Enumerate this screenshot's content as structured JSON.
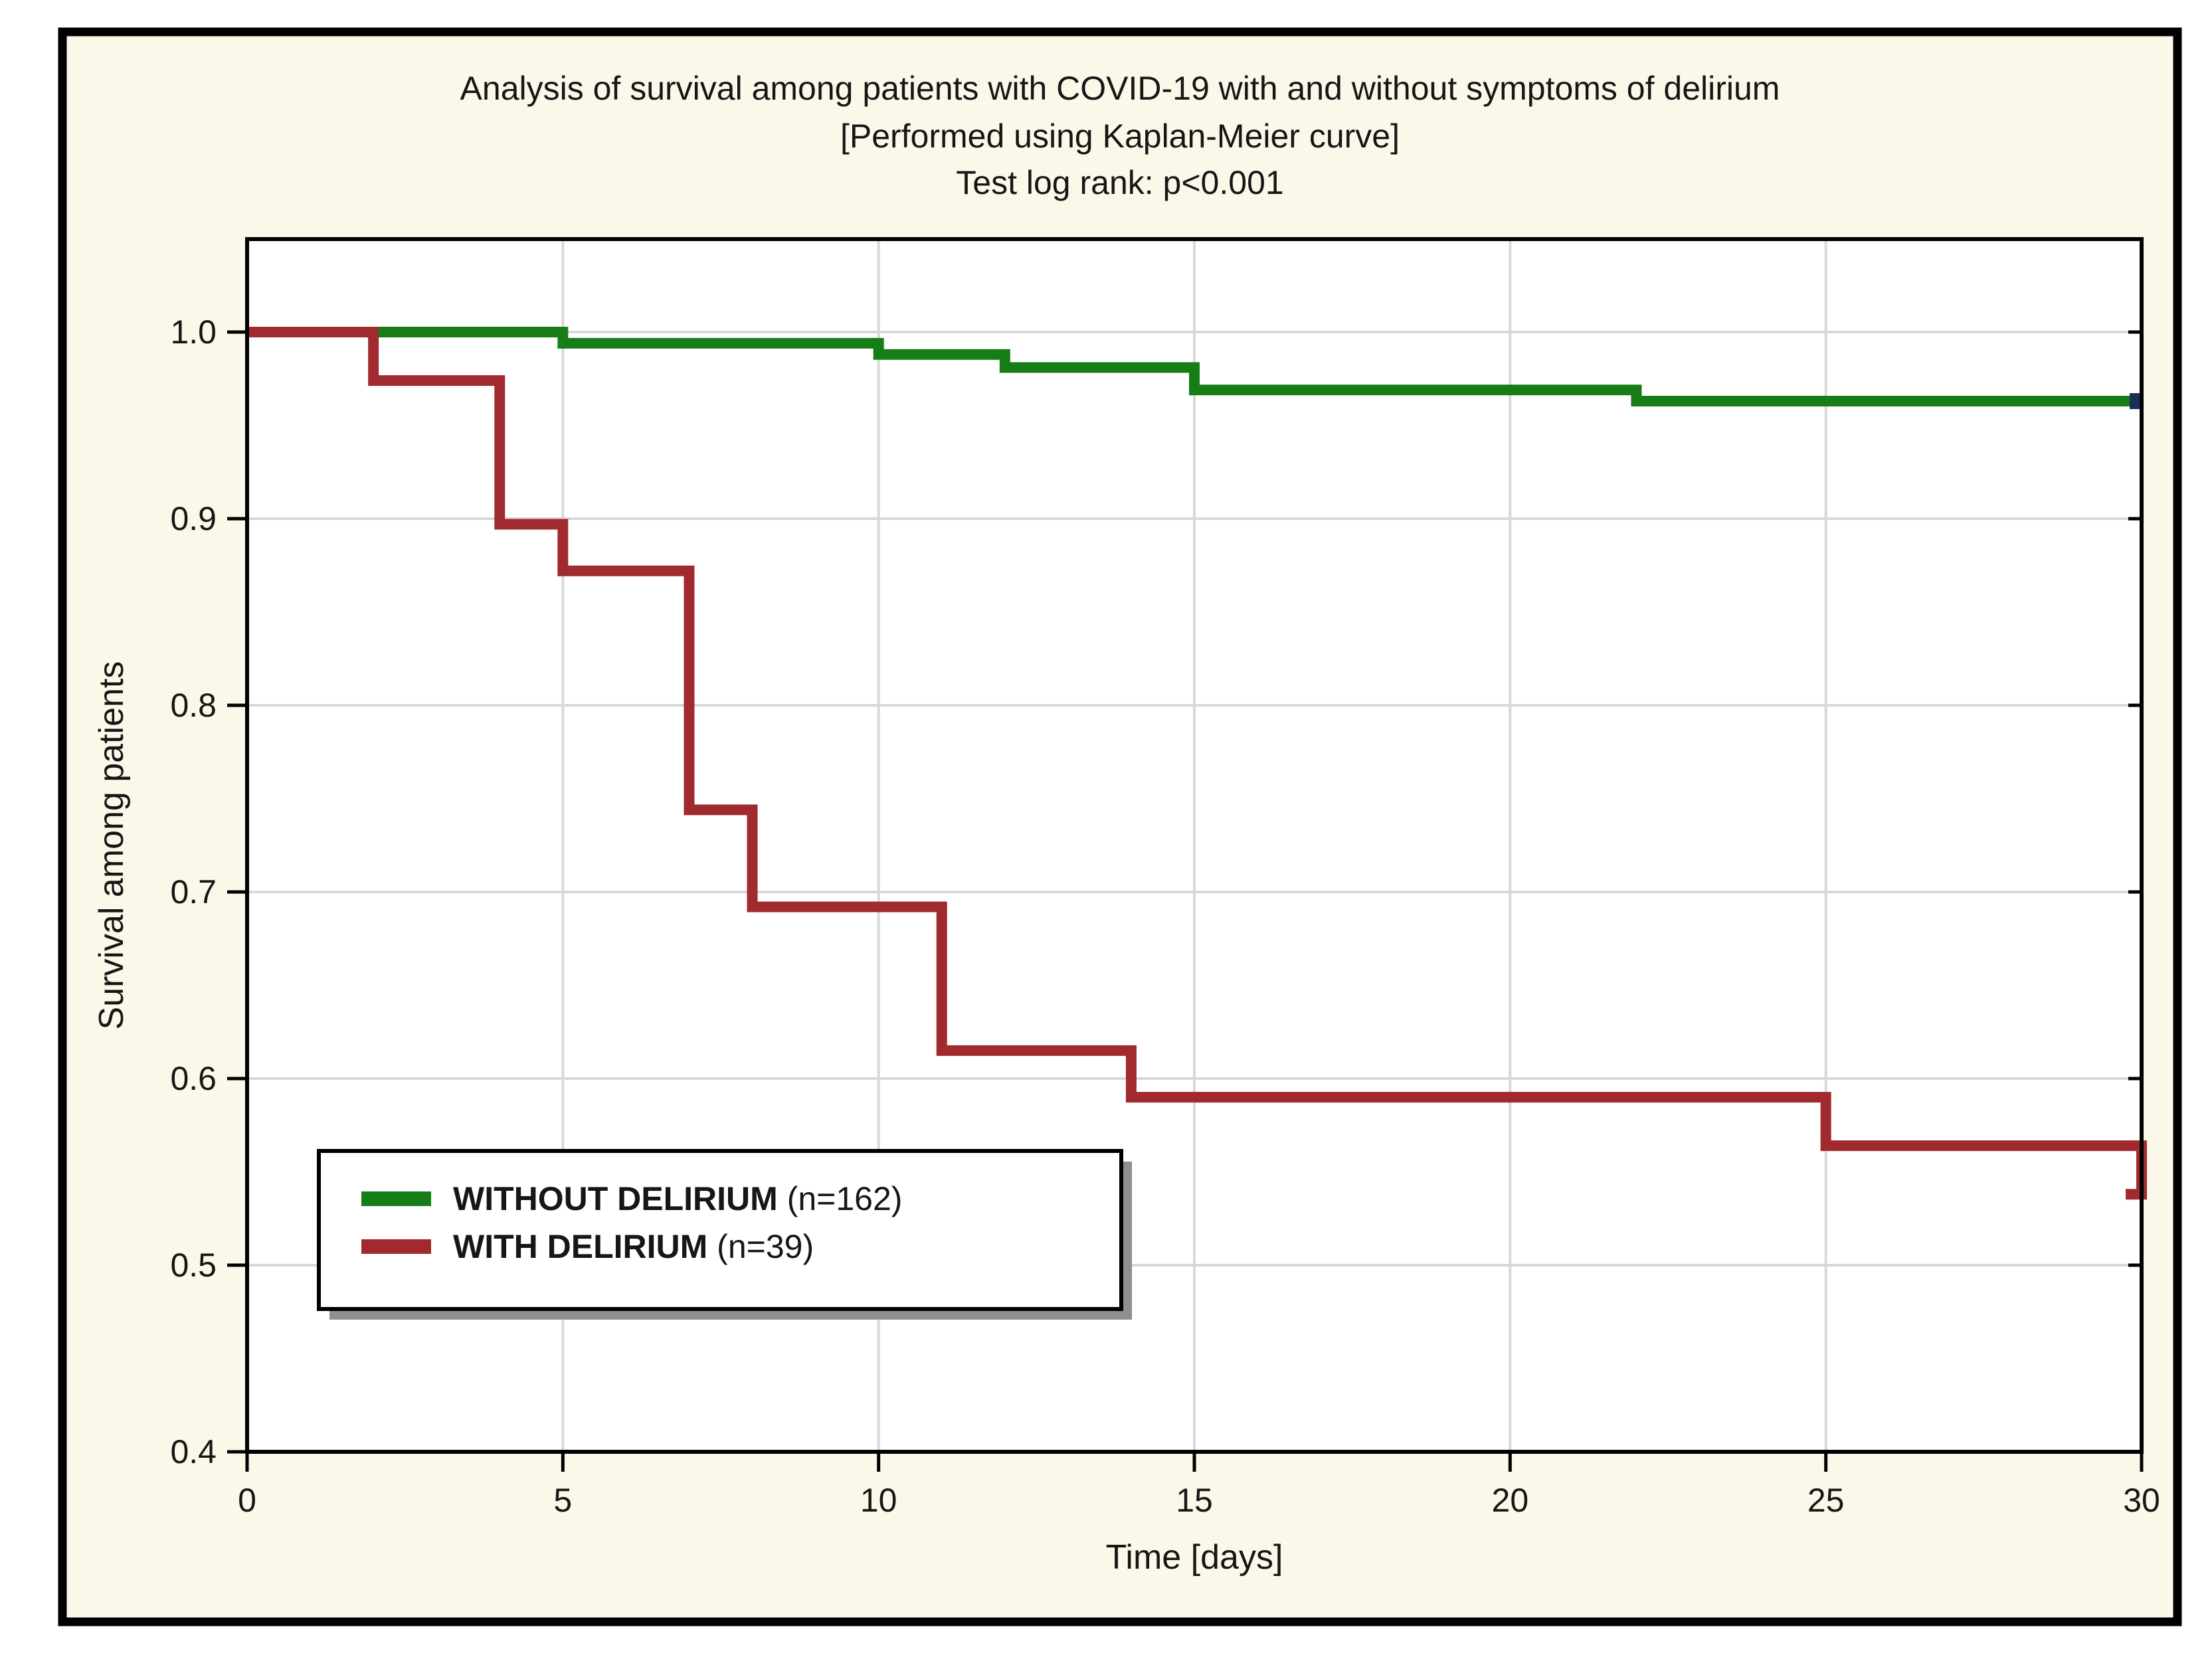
{
  "title": {
    "line1": "Analysis of survival among patients with COVID-19 with and without symptoms of delirium",
    "line2": "[Performed using Kaplan-Meier curve]",
    "line3": "Test log rank: p<0.001"
  },
  "axes": {
    "x_label": "Time [days]",
    "y_label": "Survival among patients",
    "x_tick_labels": [
      "0",
      "5",
      "10",
      "15",
      "20",
      "25",
      "30"
    ],
    "y_tick_labels": [
      "1.0",
      "0.9",
      "0.8",
      "0.7",
      "0.6",
      "0.5",
      "0.4"
    ]
  },
  "legend": {
    "items": [
      {
        "label": "WITHOUT DELIRIUM",
        "count": "(n=162)",
        "color": "#177d17"
      },
      {
        "label": "WITH DELIRIUM",
        "count": "(n=39)",
        "color": "#a02a2d"
      }
    ]
  },
  "colors": {
    "page_background": "#ffffff",
    "frame_background": "#fcf8e9",
    "frame_border": "#000000",
    "plot_background": "#ffffff",
    "plot_border": "#000000",
    "gridline": "#d8d8d8",
    "green_curve": "#177d17",
    "red_curve": "#a02a2d",
    "legend_shadow": "#8f8f8f",
    "green_end_marker": "#1c2f57"
  },
  "chart_data": {
    "type": "line",
    "subtype": "kaplan-meier-step",
    "title": "Analysis of survival among patients with COVID-19 with and without symptoms of delirium [Performed using Kaplan-Meier curve] Test log rank: p<0.001",
    "xlabel": "Time [days]",
    "ylabel": "Survival among patients",
    "xlim": [
      0,
      30
    ],
    "ylim": [
      0.4,
      1.05
    ],
    "x_ticks": [
      0,
      5,
      10,
      15,
      20,
      25,
      30
    ],
    "y_ticks": [
      1.0,
      0.9,
      0.8,
      0.7,
      0.6,
      0.5,
      0.4
    ],
    "grid": true,
    "legend_position": "lower-left",
    "series": [
      {
        "name": "WITHOUT DELIRIUM",
        "n": 162,
        "color": "#177d17",
        "steps": [
          [
            0,
            1.0
          ],
          [
            5,
            0.994
          ],
          [
            10,
            0.988
          ],
          [
            12,
            0.981
          ],
          [
            15,
            0.969
          ],
          [
            22,
            0.963
          ],
          [
            30,
            0.963
          ]
        ],
        "end_marker": true,
        "end_tail": false
      },
      {
        "name": "WITH DELIRIUM",
        "n": 39,
        "color": "#a02a2d",
        "steps": [
          [
            0,
            1.0
          ],
          [
            2,
            0.974
          ],
          [
            4,
            0.897
          ],
          [
            5,
            0.872
          ],
          [
            7,
            0.744
          ],
          [
            8,
            0.692
          ],
          [
            11,
            0.615
          ],
          [
            14,
            0.59
          ],
          [
            25,
            0.564
          ],
          [
            30,
            0.538
          ]
        ],
        "end_marker": false,
        "end_tail": true
      }
    ]
  }
}
